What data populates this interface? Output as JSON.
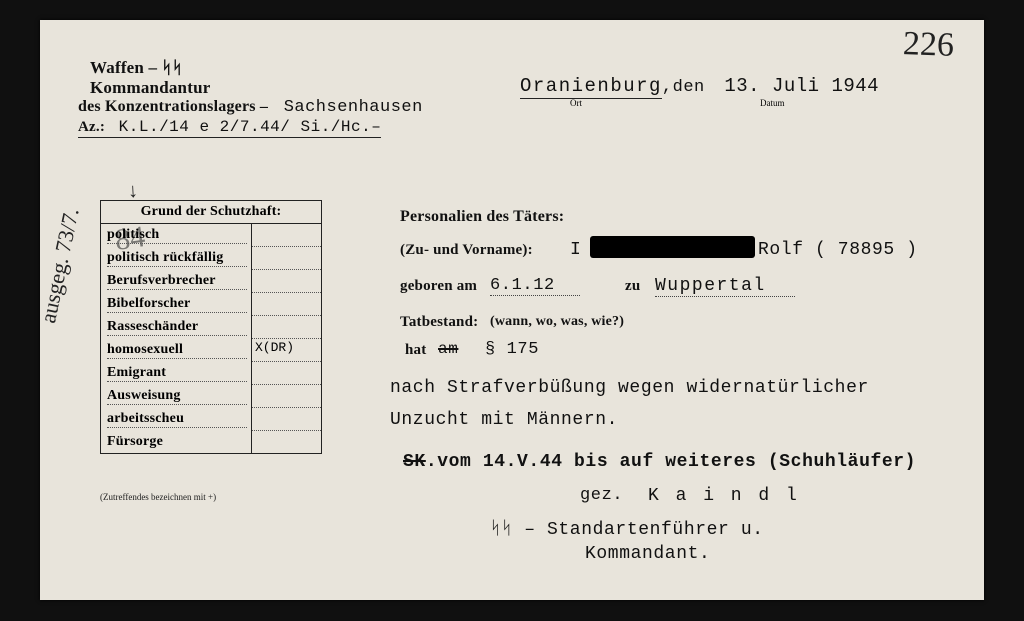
{
  "page_number_handwritten": "226",
  "header": {
    "org_line1": "Waffen  –  ᛋᛋ",
    "org_line2": "Kommandantur",
    "org_line3_prefix": "des Konzentrationslagers –",
    "org_line3_camp": "Sachsenhausen",
    "ref_label": "Az.:",
    "ref_value": "K.L./14 e 2/7.44/ Si./Hc.–",
    "place": "Oranienburg",
    "place_sub": "Ort",
    "date_conn": ",den",
    "date": "13. Juli 1944",
    "date_sub": "Datum"
  },
  "margin_note_vertical": "ausgeg. 73/7.",
  "margin_note_over": "84",
  "table": {
    "title": "Grund der Schutzhaft:",
    "rows": [
      {
        "label": "politisch",
        "mark": ""
      },
      {
        "label": "politisch rückfällig",
        "mark": ""
      },
      {
        "label": "Berufsverbrecher",
        "mark": ""
      },
      {
        "label": "Bibelforscher",
        "mark": ""
      },
      {
        "label": "Rasseschänder",
        "mark": ""
      },
      {
        "label": "homosexuell",
        "mark": "X(DR)"
      },
      {
        "label": "Emigrant",
        "mark": ""
      },
      {
        "label": "Ausweisung",
        "mark": ""
      },
      {
        "label": "arbeitsscheu",
        "mark": ""
      },
      {
        "label": "Fürsorge",
        "mark": ""
      }
    ],
    "footnote": "(Zutreffendes bezeichnen mit +)"
  },
  "body": {
    "personals_hdr": "Personalien des Täters:",
    "name_label": "(Zu- und Vorname):",
    "name_initial": "I",
    "name_given": "Rolf",
    "prisoner_no": "( 78895 )",
    "born_label": "geboren am",
    "born_date": "6.1.12",
    "born_conn": "zu",
    "born_place": "Wuppertal",
    "offense_label": "Tatbestand:",
    "offense_hint": "(wann, wo, was, wie?)",
    "offense_line1_prefix": "hat ",
    "offense_strike": "am",
    "offense_para": "§ 175",
    "offense_line2": "nach Strafverbüßung wegen widernatürlicher",
    "offense_line3": "Unzucht mit Männern.",
    "sk_strike": "SK",
    "sk_line": ".vom 14.V.44 bis auf weiteres (Schuhläufer)",
    "signed": "gez.",
    "commander": "K a i n d l",
    "rank1": "ᛋᛋ – Standartenführer u.",
    "rank2": "Kommandant."
  },
  "style": {
    "bg": "#e8e4db",
    "ink": "#111111",
    "header_fontsize": 17,
    "body_fontsize": 17,
    "fraktur_fontsize": 15
  }
}
